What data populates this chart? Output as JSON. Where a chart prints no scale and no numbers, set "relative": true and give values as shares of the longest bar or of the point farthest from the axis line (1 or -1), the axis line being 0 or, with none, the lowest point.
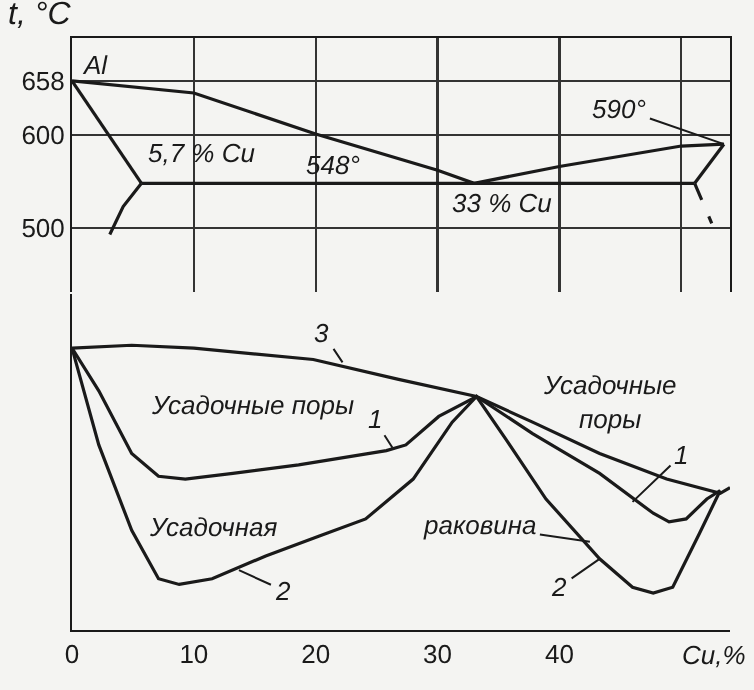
{
  "chart_data": [
    {
      "type": "line",
      "ylabel": "t, °C",
      "xlim": [
        0,
        54
      ],
      "xticks": [
        0,
        10,
        20,
        30,
        40,
        50
      ],
      "ylim": [
        427,
        704
      ],
      "yticks": [
        500,
        600,
        658
      ],
      "grid": true,
      "tick_labels": "y",
      "marker": "none",
      "line_style": "solid",
      "series": [
        {
          "color": "#1a1a1a",
          "x": [
            0,
            10,
            20,
            30,
            33,
            40,
            50,
            53.5
          ],
          "values": [
            658,
            645,
            601,
            562,
            548,
            566,
            588,
            590
          ]
        },
        {
          "color": "#1a1a1a",
          "x": [
            0,
            5.7
          ],
          "values": [
            658,
            548
          ]
        },
        {
          "color": "#1a1a1a",
          "x": [
            5.7,
            4.2,
            3.1
          ],
          "values": [
            548,
            523,
            493
          ]
        },
        {
          "color": "#1a1a1a",
          "x": [
            5.7,
            51.1
          ],
          "values": [
            548,
            548
          ]
        },
        {
          "color": "#1a1a1a",
          "x": [
            53.5,
            51.1
          ],
          "values": [
            590,
            548
          ]
        },
        {
          "color": "#1a1a1a",
          "x": [
            51.1,
            52.5
          ],
          "values": [
            548,
            505
          ],
          "line_style": "dashed"
        }
      ],
      "annotations": [
        {
          "text": "Al",
          "x": 0,
          "y": 658
        },
        {
          "text": "5,7 % Cu",
          "x": 5.7,
          "y": 548
        },
        "548°",
        {
          "text": "33 % Cu",
          "x": 33,
          "y": 548
        },
        {
          "text": "590°",
          "x": 53.5,
          "y": 590
        }
      ]
    },
    {
      "type": "line",
      "xlabel": "Cu,%",
      "relative": true,
      "xlim": [
        0,
        54
      ],
      "xticks": [
        0,
        10,
        20,
        30,
        40
      ],
      "grid": false,
      "tick_labels": "x",
      "marker": "none",
      "line_style": "solid",
      "series": [
        {
          "color": "#1a1a1a",
          "x": [
            0,
            4.9,
            10,
            19.8,
            26.8,
            33.2,
            37.8,
            43.3,
            48.8,
            53.2,
            54
          ],
          "values": [
            0.99,
            1,
            0.99,
            0.95,
            0.88,
            0.82,
            0.73,
            0.62,
            0.53,
            0.48,
            0.5
          ]
        },
        {
          "color": "#1a1a1a",
          "x": [
            0,
            2.2,
            4.9,
            7.1,
            9.3,
            13.2,
            18.6,
            25.8,
            27.4,
            30.1,
            33.2,
            37.8,
            43.3,
            47.7,
            49,
            50.4,
            52.1,
            53.2
          ],
          "values": [
            0.99,
            0.84,
            0.62,
            0.54,
            0.53,
            0.55,
            0.58,
            0.63,
            0.65,
            0.75,
            0.82,
            0.69,
            0.55,
            0.41,
            0.38,
            0.39,
            0.46,
            0.49
          ]
        },
        {
          "color": "#1a1a1a",
          "x": [
            0,
            2.2,
            4.9,
            7.1,
            8.8,
            11.5,
            15.9,
            20.3,
            24.1,
            28,
            31.2,
            33.2,
            35.6,
            38.9,
            43.3,
            46,
            47.7,
            49.3,
            51.5,
            53.2
          ],
          "values": [
            0.99,
            0.65,
            0.35,
            0.18,
            0.16,
            0.18,
            0.26,
            0.33,
            0.39,
            0.53,
            0.73,
            0.82,
            0.67,
            0.46,
            0.25,
            0.15,
            0.13,
            0.15,
            0.34,
            0.49
          ]
        }
      ],
      "annotations": [
        "Усадочные поры",
        "Усадочные\nпоры",
        "Усадочная",
        {
          "text": "раковина",
          "x": 42.5,
          "y": 0.31
        },
        {
          "text": "3",
          "x": 22.2,
          "y": 0.94
        },
        {
          "text": "1",
          "x": 26.3,
          "y": 0.64
        },
        {
          "text": "1",
          "x": 46,
          "y": 0.45
        },
        {
          "text": "2",
          "x": 13.7,
          "y": 0.21
        },
        {
          "text": "2",
          "x": 43.3,
          "y": 0.25
        }
      ]
    }
  ]
}
